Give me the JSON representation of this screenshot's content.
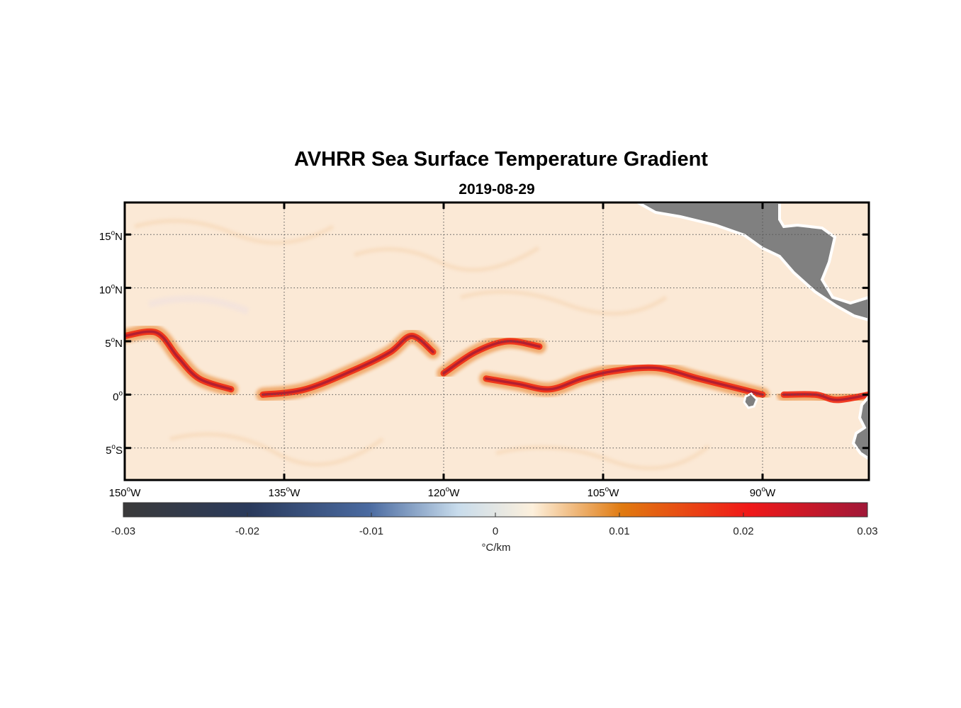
{
  "chart_data": {
    "type": "heatmap",
    "title": "AVHRR Sea Surface Temperature Gradient",
    "subtitle": "2019-08-29",
    "x_ticks": [
      {
        "deg": "150",
        "hemi": "W"
      },
      {
        "deg": "135",
        "hemi": "W"
      },
      {
        "deg": "120",
        "hemi": "W"
      },
      {
        "deg": "105",
        "hemi": "W"
      },
      {
        "deg": "90",
        "hemi": "W"
      }
    ],
    "x_values": [
      -150,
      -135,
      -120,
      -105,
      -90
    ],
    "y_ticks": [
      {
        "deg": "15",
        "hemi": "N"
      },
      {
        "deg": "10",
        "hemi": "N"
      },
      {
        "deg": "5",
        "hemi": "N"
      },
      {
        "deg": "0",
        "hemi": ""
      },
      {
        "deg": "5",
        "hemi": "S"
      }
    ],
    "y_values": [
      15,
      10,
      5,
      0,
      -5
    ],
    "xlim": [
      -150,
      -80
    ],
    "ylim": [
      -8,
      18
    ],
    "grid": true,
    "land_color": "#808080",
    "colorbar": {
      "ticks": [
        "-0.03",
        "-0.02",
        "-0.01",
        "0",
        "0.01",
        "0.02",
        "0.03"
      ],
      "values": [
        -0.03,
        -0.02,
        -0.01,
        0,
        0.01,
        0.02,
        0.03
      ],
      "range": [
        -0.03,
        0.03
      ],
      "label": "°C/km",
      "colors": [
        "#3a3a3a",
        "#2a3a5c",
        "#4a6aa0",
        "#c8dcec",
        "#fdf0dc",
        "#e07a10",
        "#f01818",
        "#a01838"
      ]
    },
    "features": {
      "gradient_fronts": [
        {
          "lon": [
            -150,
            -147,
            -145,
            -143,
            -140
          ],
          "lat": [
            5.5,
            5.8,
            3.5,
            1.5,
            0.5
          ]
        },
        {
          "lon": [
            -137,
            -133,
            -128,
            -125,
            -123,
            -121
          ],
          "lat": [
            0,
            0.5,
            2.5,
            4,
            5.5,
            4
          ]
        },
        {
          "lon": [
            -120,
            -117,
            -114,
            -111
          ],
          "lat": [
            2,
            4,
            5,
            4.5
          ]
        },
        {
          "lon": [
            -116,
            -113,
            -110,
            -107,
            -104,
            -100,
            -96,
            -92,
            -90
          ],
          "lat": [
            1.5,
            1,
            0.5,
            1.5,
            2.2,
            2.5,
            1.5,
            0.5,
            0
          ]
        },
        {
          "lon": [
            -88,
            -85,
            -83,
            -80
          ],
          "lat": [
            0,
            0,
            -0.5,
            0
          ]
        }
      ]
    }
  }
}
